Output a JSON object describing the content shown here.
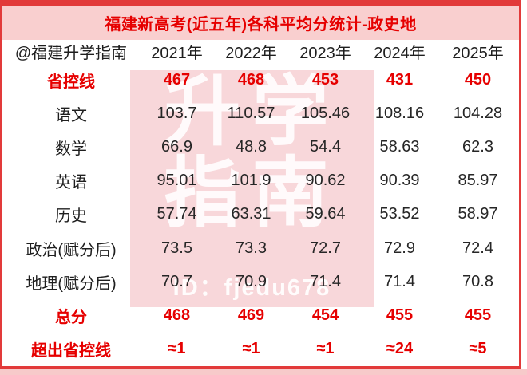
{
  "title": "福建新高考(近五年)各科平均分统计-政史地",
  "header": {
    "source": "@福建升学指南",
    "years": [
      "2021年",
      "2022年",
      "2023年",
      "2024年",
      "2025年"
    ]
  },
  "watermark": {
    "line1": "升学",
    "line2": "指南",
    "id": "ID：fjedu678"
  },
  "colors": {
    "accent_red": "#e60000",
    "border_red": "#e23a3a",
    "title_bar_pink": "#f9cfcf",
    "watermark_pink": "#f8d7da"
  },
  "chart_data": {
    "type": "table",
    "title": "福建新高考(近五年)各科平均分统计-政史地",
    "columns": [
      "@福建升学指南",
      "2021年",
      "2022年",
      "2023年",
      "2024年",
      "2025年"
    ],
    "rows": [
      {
        "label": "省控线",
        "values": [
          "467",
          "468",
          "453",
          "431",
          "450"
        ],
        "highlight": true
      },
      {
        "label": "语文",
        "values": [
          "103.7",
          "110.57",
          "105.46",
          "108.16",
          "104.28"
        ],
        "highlight": false
      },
      {
        "label": "数学",
        "values": [
          "66.9",
          "48.8",
          "54.4",
          "58.63",
          "62.3"
        ],
        "highlight": false
      },
      {
        "label": "英语",
        "values": [
          "95.01",
          "101.9",
          "90.62",
          "90.39",
          "85.97"
        ],
        "highlight": false
      },
      {
        "label": "历史",
        "values": [
          "57.74",
          "63.31",
          "59.64",
          "53.52",
          "58.97"
        ],
        "highlight": false
      },
      {
        "label": "政治(赋分后)",
        "values": [
          "73.5",
          "73.3",
          "72.7",
          "72.9",
          "72.4"
        ],
        "highlight": false
      },
      {
        "label": "地理(赋分后)",
        "values": [
          "70.7",
          "70.9",
          "71.4",
          "71.4",
          "70.8"
        ],
        "highlight": false
      },
      {
        "label": "总分",
        "values": [
          "468",
          "469",
          "454",
          "455",
          "455"
        ],
        "highlight": true
      },
      {
        "label": "超出省控线",
        "values": [
          "≈1",
          "≈1",
          "≈1",
          "≈24",
          "≈5"
        ],
        "highlight": true
      }
    ]
  }
}
